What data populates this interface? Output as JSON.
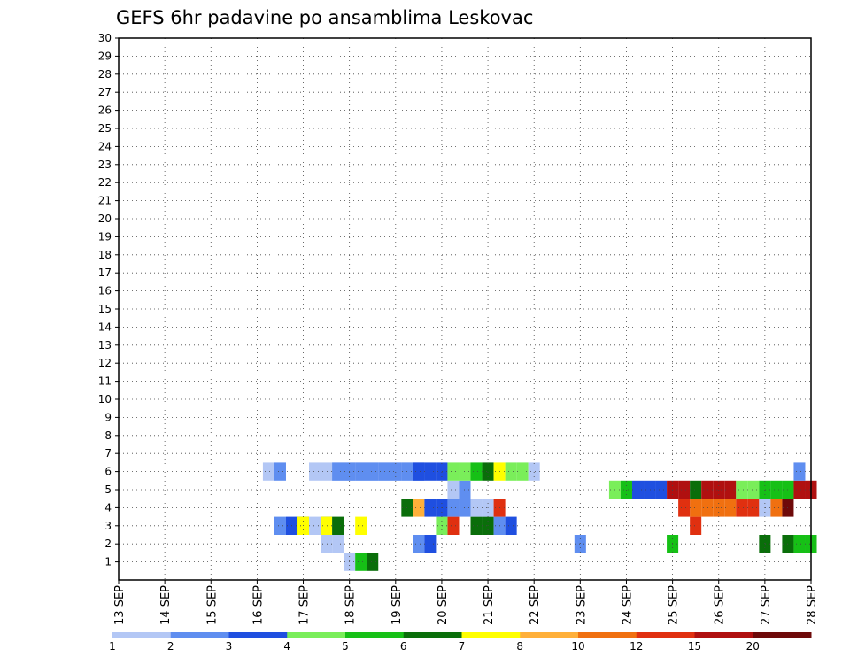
{
  "chart_data": {
    "type": "heatmap",
    "title": "GEFS 6hr padavine po ansamblima Leskovac",
    "xlabel": "",
    "ylabel": "",
    "x_ticks": [
      "13 SEP",
      "14 SEP",
      "15 SEP",
      "16 SEP",
      "17 SEP",
      "18 SEP",
      "19 SEP",
      "20 SEP",
      "21 SEP",
      "22 SEP",
      "23 SEP",
      "24 SEP",
      "25 SEP",
      "26 SEP",
      "27 SEP",
      "28 SEP"
    ],
    "x_range": [
      0,
      60
    ],
    "x_unit": "6-hour steps from 13 SEP 00Z",
    "y_ticks": [
      1,
      2,
      3,
      4,
      5,
      6,
      7,
      8,
      9,
      10,
      11,
      12,
      13,
      14,
      15,
      16,
      17,
      18,
      19,
      20,
      21,
      22,
      23,
      24,
      25,
      26,
      27,
      28,
      29,
      30
    ],
    "y_range": [
      0,
      30
    ],
    "grid": true,
    "legend": {
      "placement": "bottom",
      "thresholds": [
        "1",
        "2",
        "3",
        "4",
        "5",
        "6",
        "7",
        "8",
        "10",
        "12",
        "15",
        "20"
      ],
      "colors": [
        "#b3c7f5",
        "#5f8ef0",
        "#1f4fe0",
        "#7aee5a",
        "#16c016",
        "#0a6e0a",
        "#ffff00",
        "#ffb03a",
        "#f07010",
        "#e03010",
        "#b01010",
        "#6e0a0a"
      ]
    },
    "cells": [
      [
        20,
        1,
        0
      ],
      [
        21,
        1,
        4
      ],
      [
        22,
        1,
        5
      ],
      [
        19,
        2,
        0
      ],
      [
        26,
        2,
        1
      ],
      [
        27,
        2,
        2
      ],
      [
        40,
        2,
        1
      ],
      [
        18,
        2,
        0
      ],
      [
        56,
        2,
        5
      ],
      [
        58,
        2,
        5
      ],
      [
        59,
        2,
        4
      ],
      [
        60,
        2,
        4
      ],
      [
        48,
        2,
        4
      ],
      [
        16,
        3,
        5
      ],
      [
        16,
        3,
        6
      ],
      [
        18,
        3,
        5
      ],
      [
        18,
        3,
        6
      ],
      [
        19,
        3,
        5
      ],
      [
        14,
        3,
        1
      ],
      [
        15,
        3,
        2
      ],
      [
        17,
        3,
        0
      ],
      [
        21,
        3,
        6
      ],
      [
        29,
        3,
        9
      ],
      [
        31,
        3,
        5
      ],
      [
        32,
        3,
        5
      ],
      [
        33,
        3,
        1
      ],
      [
        28,
        3,
        3
      ],
      [
        34,
        3,
        2
      ],
      [
        50,
        3,
        9
      ],
      [
        25,
        4,
        5
      ],
      [
        26,
        4,
        7
      ],
      [
        27,
        4,
        2
      ],
      [
        28,
        4,
        2
      ],
      [
        29,
        4,
        1
      ],
      [
        30,
        4,
        1
      ],
      [
        31,
        4,
        0
      ],
      [
        32,
        4,
        0
      ],
      [
        33,
        4,
        9
      ],
      [
        50,
        4,
        8
      ],
      [
        51,
        4,
        8
      ],
      [
        52,
        4,
        8
      ],
      [
        53,
        4,
        8
      ],
      [
        49,
        4,
        9
      ],
      [
        54,
        4,
        9
      ],
      [
        55,
        4,
        9
      ],
      [
        56,
        4,
        0
      ],
      [
        57,
        4,
        8
      ],
      [
        58,
        4,
        11
      ],
      [
        29,
        5,
        0
      ],
      [
        30,
        5,
        1
      ],
      [
        43,
        5,
        3
      ],
      [
        44,
        5,
        4
      ],
      [
        45,
        5,
        2
      ],
      [
        46,
        5,
        2
      ],
      [
        47,
        5,
        2
      ],
      [
        48,
        5,
        10
      ],
      [
        49,
        5,
        10
      ],
      [
        50,
        5,
        5
      ],
      [
        51,
        5,
        10
      ],
      [
        52,
        5,
        10
      ],
      [
        53,
        5,
        10
      ],
      [
        54,
        5,
        3
      ],
      [
        55,
        5,
        3
      ],
      [
        56,
        5,
        4
      ],
      [
        57,
        5,
        4
      ],
      [
        58,
        5,
        4
      ],
      [
        59,
        5,
        10
      ],
      [
        60,
        5,
        10
      ],
      [
        13,
        6,
        0
      ],
      [
        14,
        6,
        1
      ],
      [
        17,
        6,
        0
      ],
      [
        18,
        6,
        0
      ],
      [
        19,
        6,
        0
      ],
      [
        20,
        6,
        0
      ],
      [
        21,
        6,
        0
      ],
      [
        22,
        6,
        0
      ],
      [
        23,
        6,
        0
      ],
      [
        24,
        6,
        0
      ],
      [
        26,
        6,
        1
      ],
      [
        25,
        6,
        0
      ],
      [
        19,
        6,
        1
      ],
      [
        20,
        6,
        1
      ],
      [
        21,
        6,
        1
      ],
      [
        22,
        6,
        1
      ],
      [
        23,
        6,
        1
      ],
      [
        24,
        6,
        1
      ],
      [
        25,
        6,
        1
      ],
      [
        26,
        6,
        2
      ],
      [
        27,
        6,
        2
      ],
      [
        28,
        6,
        2
      ],
      [
        29,
        6,
        3
      ],
      [
        30,
        6,
        3
      ],
      [
        31,
        6,
        4
      ],
      [
        32,
        6,
        5
      ],
      [
        33,
        6,
        6
      ],
      [
        34,
        6,
        3
      ],
      [
        35,
        6,
        3
      ],
      [
        36,
        6,
        0
      ],
      [
        59,
        6,
        1
      ]
    ],
    "cell_layout_note": ""
  }
}
